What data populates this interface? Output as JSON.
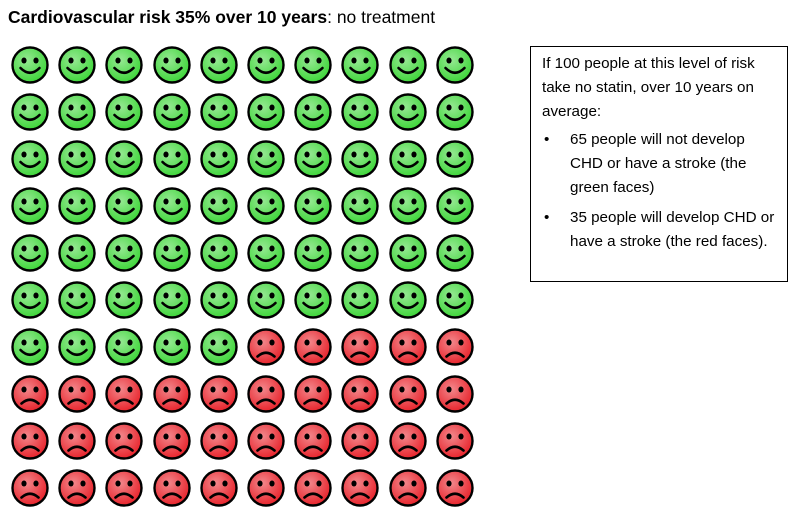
{
  "title": {
    "bold_part": "Cardiovascular risk 35% over 10 years",
    "rest_part": ": no treatment"
  },
  "chart_data": {
    "type": "icon-array",
    "total": 100,
    "rows": 10,
    "cols": 10,
    "fill_order": "row-major",
    "categories": [
      {
        "name": "will not develop CHD or have a stroke",
        "count": 65,
        "icon": "smiley-face-icon",
        "color": "#3fd63a"
      },
      {
        "name": "will develop CHD or have a stroke",
        "count": 35,
        "icon": "frowny-face-icon",
        "color": "#e8242c"
      }
    ]
  },
  "infobox": {
    "intro": "If 100 people at this level of risk take no statin, over 10 years on average:",
    "bullet_glyph": "•",
    "items": [
      "65 people will not develop CHD or have a stroke (the green faces)",
      "35 people will develop CHD or have a stroke (the red faces)."
    ]
  },
  "colors": {
    "green_face": "#3fd63a",
    "red_face": "#e8242c",
    "face_outline": "#000000"
  }
}
